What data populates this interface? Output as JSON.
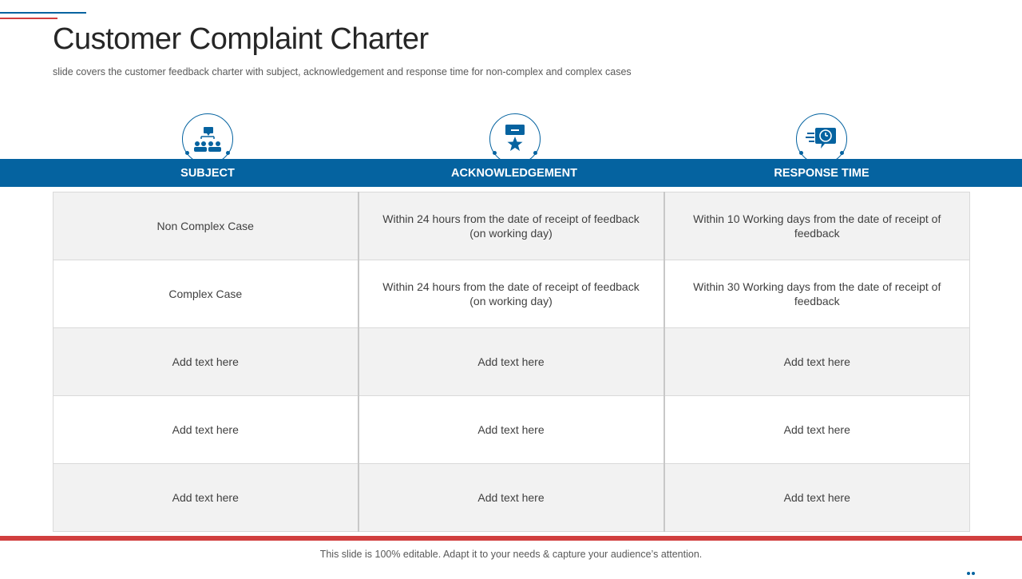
{
  "slide": {
    "title": "Customer Complaint Charter",
    "subtitle": "slide covers the customer feedback charter with subject, acknowledgement  and response time for non-complex and complex cases",
    "footer": "This slide is 100% editable. Adapt it to your needs & capture your audience’s attention."
  },
  "columns": [
    {
      "label": "SUBJECT",
      "icon": "people-discussion-icon"
    },
    {
      "label": "ACKNOWLEDGEMENT",
      "icon": "award-star-icon"
    },
    {
      "label": "RESPONSE TIME",
      "icon": "chat-clock-icon"
    }
  ],
  "rows": [
    [
      "Non Complex Case",
      "Within 24 hours from the date of receipt of feedback (on working day)",
      "Within 10 Working days from the date of receipt of feedback"
    ],
    [
      "Complex Case",
      "Within 24 hours from the date of receipt of feedback (on working day)",
      "Within 30 Working days from the date of receipt of feedback"
    ],
    [
      "Add text here",
      "Add text here",
      "Add text here"
    ],
    [
      "Add text here",
      "Add text here",
      "Add text here"
    ],
    [
      "Add text here",
      "Add text here",
      "Add text here"
    ]
  ],
  "colors": {
    "accent_blue": "#0563a0",
    "accent_red": "#d13f3f",
    "row_shade": "#f2f2f2"
  }
}
